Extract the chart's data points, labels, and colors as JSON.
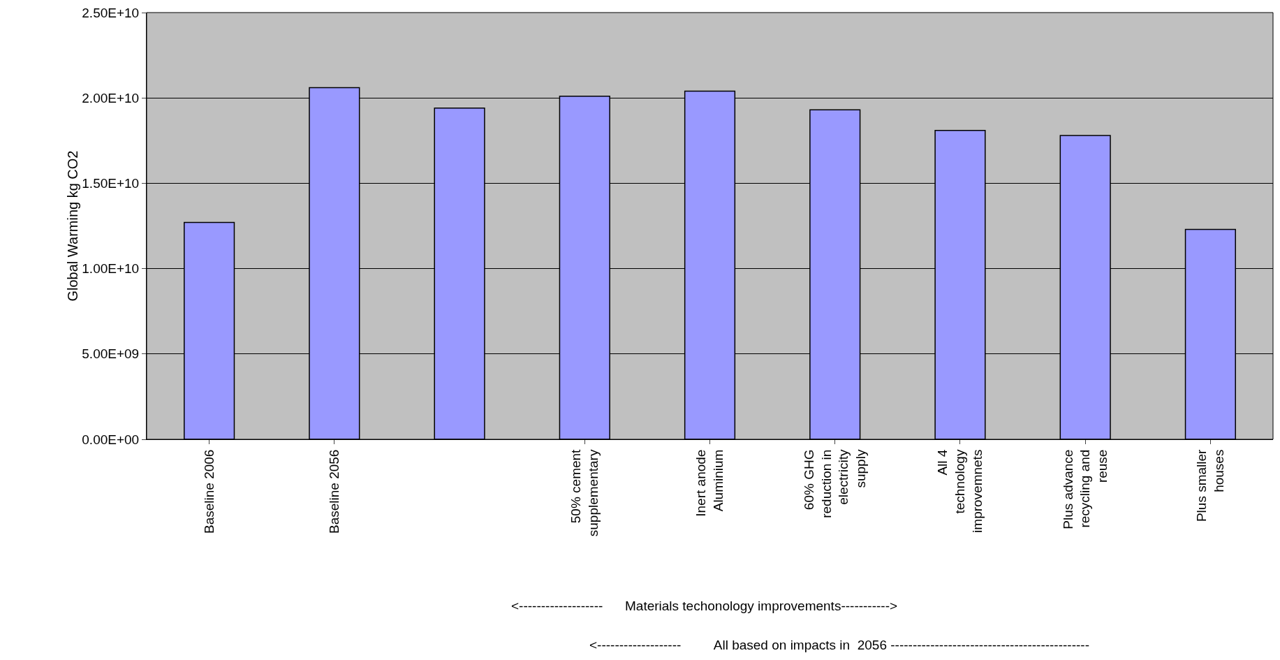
{
  "chart_data": {
    "type": "bar",
    "ylabel": "Global Warming kg CO2",
    "categories": [
      "Baseline 2006",
      "Baseline 2056",
      null,
      "50% cement\nsupplementary",
      "Inert anode\nAluminium",
      "60% GHG\nreduction in\nelectricity\nsupply",
      "All 4\ntechnology\nimprovemnets",
      "Plus advance\nrecycling and\nreuse",
      "Plus smaller\nhouses"
    ],
    "values": [
      12700000000,
      20600000000,
      19400000000,
      20100000000,
      20400000000,
      19300000000,
      18100000000,
      17800000000,
      12300000000
    ],
    "color": "#9999ff",
    "ylim": [
      0,
      25000000000
    ],
    "yticks": [
      {
        "value": 0,
        "label": "0.00E+00"
      },
      {
        "value": 5000000000,
        "label": "5.00E+09"
      },
      {
        "value": 10000000000,
        "label": "1.00E+10"
      },
      {
        "value": 15000000000,
        "label": "1.50E+10"
      },
      {
        "value": 20000000000,
        "label": "2.00E+10"
      },
      {
        "value": 25000000000,
        "label": "2.50E+10"
      }
    ],
    "grid": "y",
    "annotations": [
      "<-------------------      Materials techonology improvements----------->",
      "<-------------------         All based on impacts in  2056 ---------------------------------------------"
    ]
  }
}
